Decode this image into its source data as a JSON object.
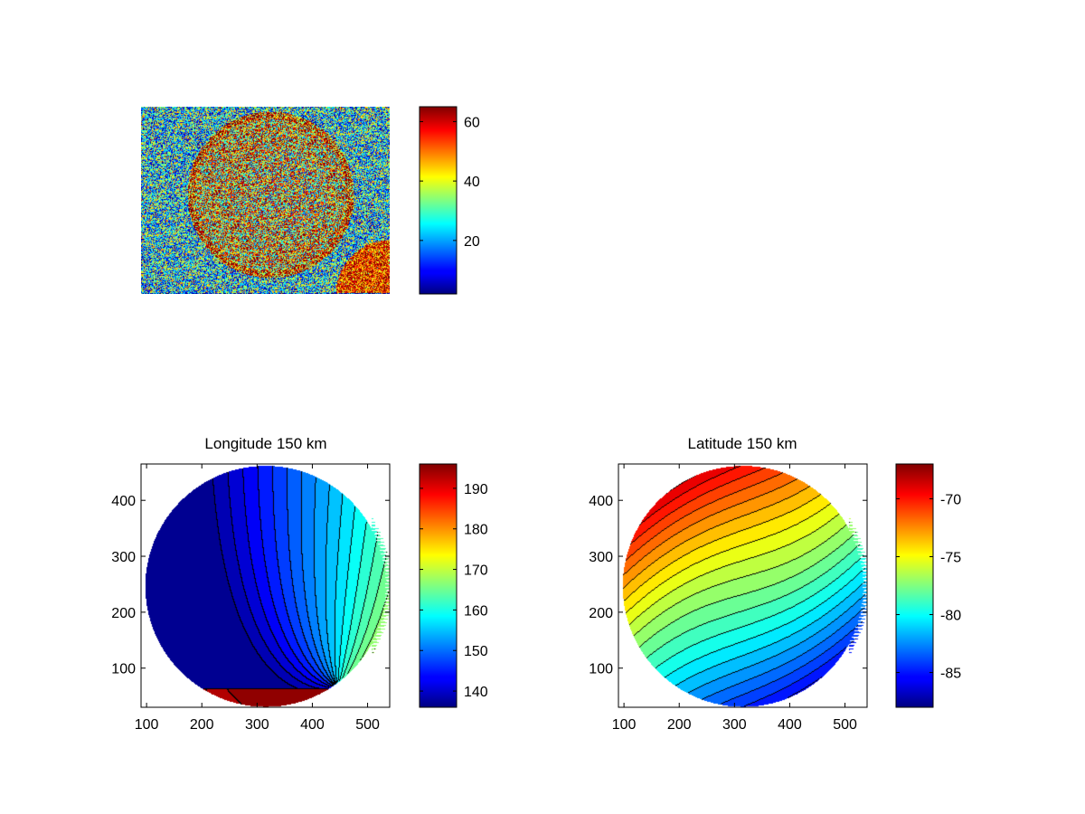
{
  "figure": {
    "background": "#ffffff",
    "colormap": "jet"
  },
  "chart_data": [
    {
      "type": "heatmap",
      "title": "",
      "content": "noisy image with a bright circular disk and a bright corner blob",
      "colorbar": {
        "min": 2,
        "max": 65,
        "ticks": [
          20,
          40,
          60
        ],
        "tick_labels": [
          "20",
          "40",
          "60"
        ]
      }
    },
    {
      "type": "heatmap",
      "title": "Longitude 150 km",
      "xlabel": "",
      "ylabel": "",
      "xlim": [
        90,
        540
      ],
      "ylim": [
        30,
        465
      ],
      "x_ticks": [
        100,
        200,
        300,
        400,
        500
      ],
      "x_tick_labels": [
        "100",
        "200",
        "300",
        "400",
        "500"
      ],
      "y_ticks": [
        100,
        200,
        300,
        400
      ],
      "y_tick_labels": [
        "100",
        "200",
        "300",
        "400"
      ],
      "disk": {
        "center": [
          315,
          247
        ],
        "radius": 218
      },
      "field": "longitude contours converging near (445, 65)",
      "colorbar": {
        "min": 136,
        "max": 196,
        "ticks": [
          140,
          150,
          160,
          170,
          180,
          190
        ],
        "tick_labels": [
          "140",
          "150",
          "160",
          "170",
          "180",
          "190"
        ]
      }
    },
    {
      "type": "heatmap",
      "title": "Latitude 150 km",
      "xlabel": "",
      "ylabel": "",
      "xlim": [
        90,
        540
      ],
      "ylim": [
        30,
        465
      ],
      "x_ticks": [
        100,
        200,
        300,
        400,
        500
      ],
      "x_tick_labels": [
        "100",
        "200",
        "300",
        "400",
        "500"
      ],
      "y_ticks": [
        100,
        200,
        300,
        400
      ],
      "y_tick_labels": [
        "100",
        "200",
        "300",
        "400"
      ],
      "disk": {
        "center": [
          315,
          247
        ],
        "radius": 218
      },
      "field": "latitude contours in diagonal bands",
      "colorbar": {
        "min": -88,
        "max": -67,
        "ticks": [
          -85,
          -80,
          -75,
          -70
        ],
        "tick_labels": [
          "-85",
          "-80",
          "-75",
          "-70"
        ]
      }
    }
  ]
}
